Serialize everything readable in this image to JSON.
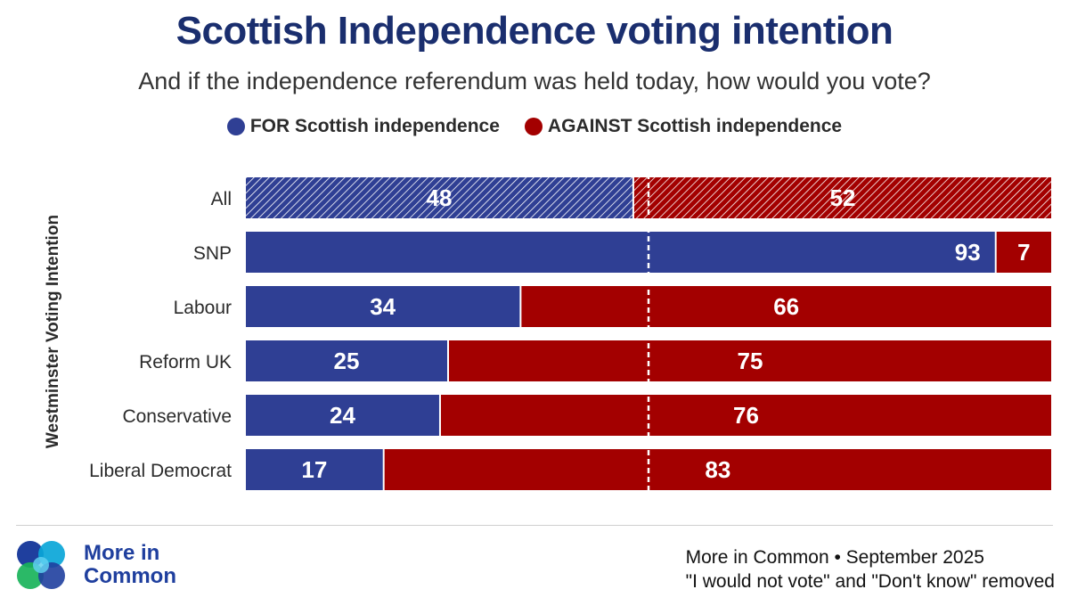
{
  "title": "Scottish Independence voting intention",
  "subtitle": "And if the independence referendum was held today, how would you vote?",
  "legend": {
    "for_label": "FOR Scottish independence",
    "against_label": "AGAINST Scottish independence"
  },
  "colors": {
    "for": "#2f3f94",
    "against": "#a30000",
    "title": "#1a2e6e"
  },
  "chart_data": {
    "type": "bar",
    "orientation": "horizontal-stacked-100",
    "title": "Scottish Independence voting intention",
    "subtitle": "And if the independence referendum was held today, how would you vote?",
    "ylabel": "Westminster Voting Intention",
    "xlim": [
      0,
      100
    ],
    "reference_line": 50,
    "categories": [
      "All",
      "SNP",
      "Labour",
      "Reform UK",
      "Conservative",
      "Liberal Democrat"
    ],
    "series": [
      {
        "name": "FOR Scottish independence",
        "values": [
          48,
          93,
          34,
          25,
          24,
          17
        ]
      },
      {
        "name": "AGAINST Scottish independence",
        "values": [
          52,
          7,
          66,
          75,
          76,
          83
        ]
      }
    ],
    "hatched_categories": [
      "All"
    ]
  },
  "logo": {
    "line1": "More in",
    "line2": "Common"
  },
  "footer": {
    "source": "More in Common • September 2025",
    "note": "\"I would not vote\" and \"Don't know\" removed"
  }
}
